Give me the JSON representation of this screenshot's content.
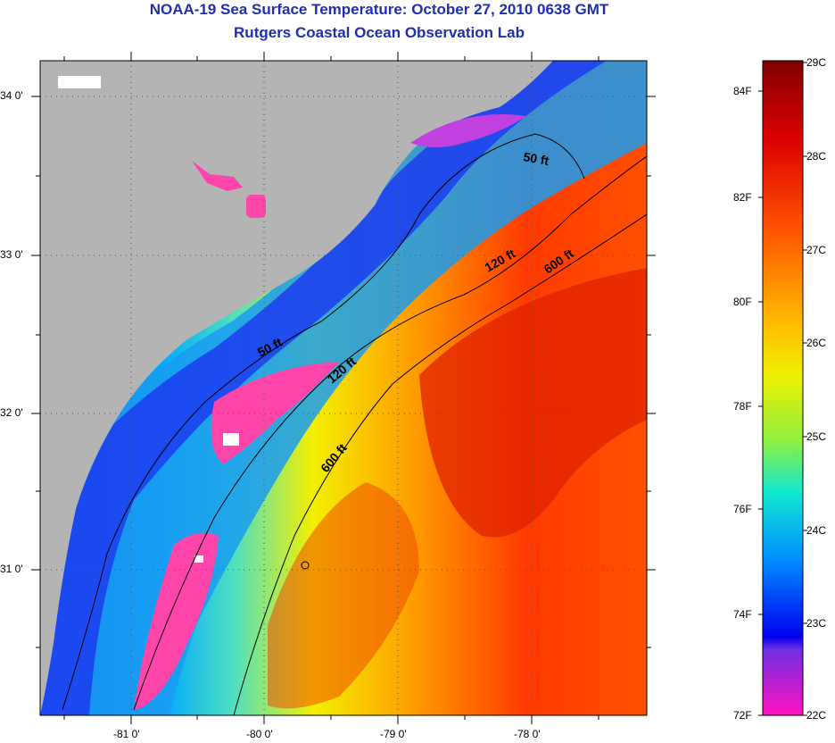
{
  "title": "NOAA-19 Sea Surface Temperature:  October 27, 2010 0638 GMT",
  "subtitle": "Rutgers Coastal Ocean Observation Lab",
  "lat_labels": [
    "34 0'",
    "33 0'",
    "32 0'",
    "31 0'"
  ],
  "lon_labels": [
    "-81 0'",
    "-80 0'",
    "-79 0'",
    "-78 0'"
  ],
  "contours": [
    {
      "label": "50 ft",
      "instances": 2
    },
    {
      "label": "120 ft",
      "instances": 2
    },
    {
      "label": "600 ft",
      "instances": 2
    }
  ],
  "contour_labels": {
    "a": "50 ft",
    "b": "50 ft",
    "c": "120 ft",
    "d": "120 ft",
    "e": "600 ft",
    "f": "600 ft"
  },
  "colorbar": {
    "fahrenheit_labels": [
      "84F",
      "82F",
      "80F",
      "78F",
      "76F",
      "74F",
      "72F"
    ],
    "celsius_labels": [
      "29C",
      "28C",
      "27C",
      "26C",
      "25C",
      "24C",
      "23C",
      "22C"
    ],
    "range_c": [
      22,
      29
    ],
    "range_f": [
      72,
      84.2
    ]
  },
  "colors": {
    "land": "#b4b4b4",
    "title": "#1f2fb0",
    "cloud": "#ffffff",
    "cold_anomaly": "#ff44aa"
  }
}
